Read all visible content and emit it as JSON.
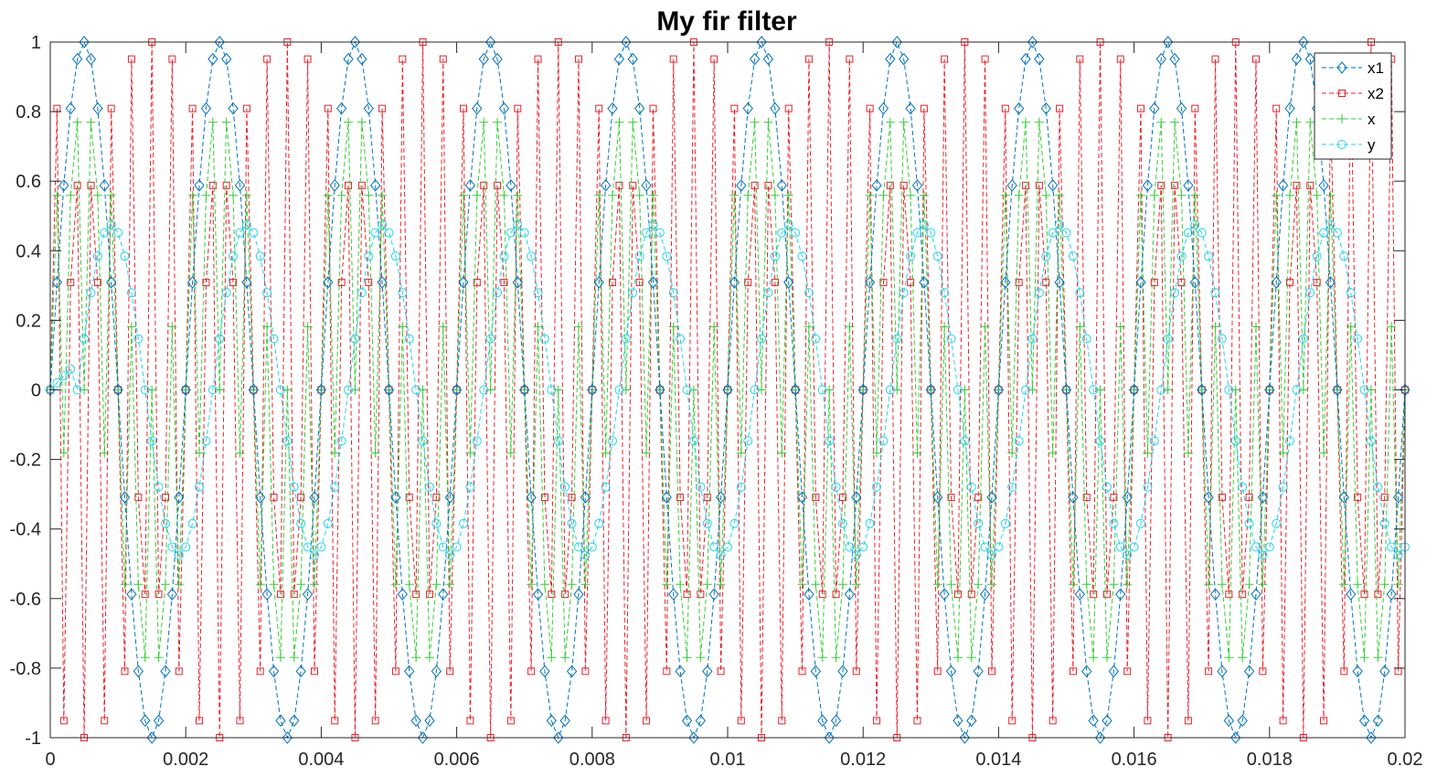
{
  "chart_data": {
    "type": "line",
    "title": "My fir filter",
    "xlabel": "",
    "ylabel": "",
    "xlim": [
      0,
      0.02
    ],
    "ylim": [
      -1,
      1
    ],
    "x_ticks": [
      0,
      0.002,
      0.004,
      0.006,
      0.008,
      0.01,
      0.012,
      0.014,
      0.016,
      0.018,
      0.02
    ],
    "x_tick_labels": [
      "0",
      "0.002",
      "0.004",
      "0.006",
      "0.008",
      "0.01",
      "0.012",
      "0.014",
      "0.016",
      "0.018",
      "0.02"
    ],
    "y_ticks": [
      -1,
      -0.8,
      -0.6,
      -0.4,
      -0.2,
      0,
      0.2,
      0.4,
      0.6,
      0.8,
      1
    ],
    "y_tick_labels": [
      "-1",
      "-0.8",
      "-0.6",
      "-0.4",
      "-0.2",
      "0",
      "0.2",
      "0.4",
      "0.6",
      "0.8",
      "1"
    ],
    "grid": false,
    "legend_position": "top-right",
    "sampling": {
      "t_start": 0,
      "t_step": 0.0001,
      "t_end": 0.02
    },
    "series": [
      {
        "name": "x1",
        "description": "sin(2*pi*500*t)",
        "freq_hz": 500,
        "amplitude": 1,
        "color": "#0072BD",
        "marker": "diamond",
        "line_style": "dashed"
      },
      {
        "name": "x2",
        "description": "sin(2*pi*3500*t)",
        "freq_hz": 3500,
        "amplitude": 1,
        "color": "#D95319",
        "marker": "square",
        "line_style": "dashed",
        "stroke": "#E8202A"
      },
      {
        "name": "x",
        "description": "(x1+x2)/2",
        "color": "#33CC33",
        "marker": "plus",
        "line_style": "dashed"
      },
      {
        "name": "y",
        "description": "filtered x (FIR, ~4 sample delay)",
        "freq_hz": 500,
        "amplitude": 0.475,
        "delay_samples": 4,
        "color": "#22D3EE",
        "marker": "circle",
        "line_style": "dashed"
      }
    ]
  }
}
